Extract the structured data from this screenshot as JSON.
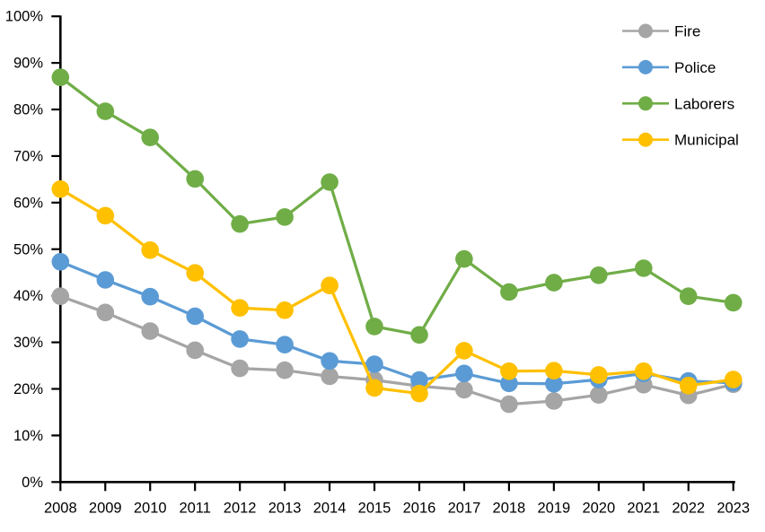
{
  "chart_data": {
    "type": "line",
    "title": "",
    "xlabel": "",
    "ylabel": "",
    "categories": [
      "2008",
      "2009",
      "2010",
      "2011",
      "2012",
      "2013",
      "2014",
      "2015",
      "2016",
      "2017",
      "2018",
      "2019",
      "2020",
      "2021",
      "2022",
      "2023"
    ],
    "series": [
      {
        "name": "Fire",
        "color": "#A5A5A5",
        "values": [
          39.9,
          36.4,
          32.4,
          28.3,
          24.4,
          24.0,
          22.7,
          21.9,
          20.6,
          19.8,
          16.7,
          17.4,
          18.7,
          20.9,
          18.6,
          21.0
        ]
      },
      {
        "name": "Police",
        "color": "#5B9BD5",
        "values": [
          47.3,
          43.4,
          39.8,
          35.6,
          30.7,
          29.5,
          26.0,
          25.3,
          21.9,
          23.3,
          21.2,
          21.1,
          22.0,
          23.3,
          21.7,
          21.3
        ]
      },
      {
        "name": "Laborers",
        "color": "#70AD47",
        "values": [
          86.9,
          79.6,
          74.0,
          65.1,
          55.4,
          56.9,
          64.4,
          33.4,
          31.6,
          47.9,
          40.8,
          42.8,
          44.4,
          45.9,
          39.9,
          38.5
        ]
      },
      {
        "name": "Municipal",
        "color": "#FFC000",
        "values": [
          62.9,
          57.2,
          49.8,
          44.9,
          37.4,
          36.9,
          42.2,
          20.2,
          19.0,
          28.2,
          23.8,
          23.9,
          23.0,
          23.8,
          20.7,
          22.0
        ]
      }
    ],
    "ylim": [
      0,
      100
    ],
    "ytick_step": 10,
    "ytick_labels": [
      "0%",
      "10%",
      "20%",
      "30%",
      "40%",
      "50%",
      "60%",
      "70%",
      "80%",
      "90%",
      "100%"
    ],
    "grid": false,
    "legend_position": "top-right",
    "axis_color": "#000000",
    "background_color": "#FFFFFF",
    "marker_style": "circle"
  }
}
